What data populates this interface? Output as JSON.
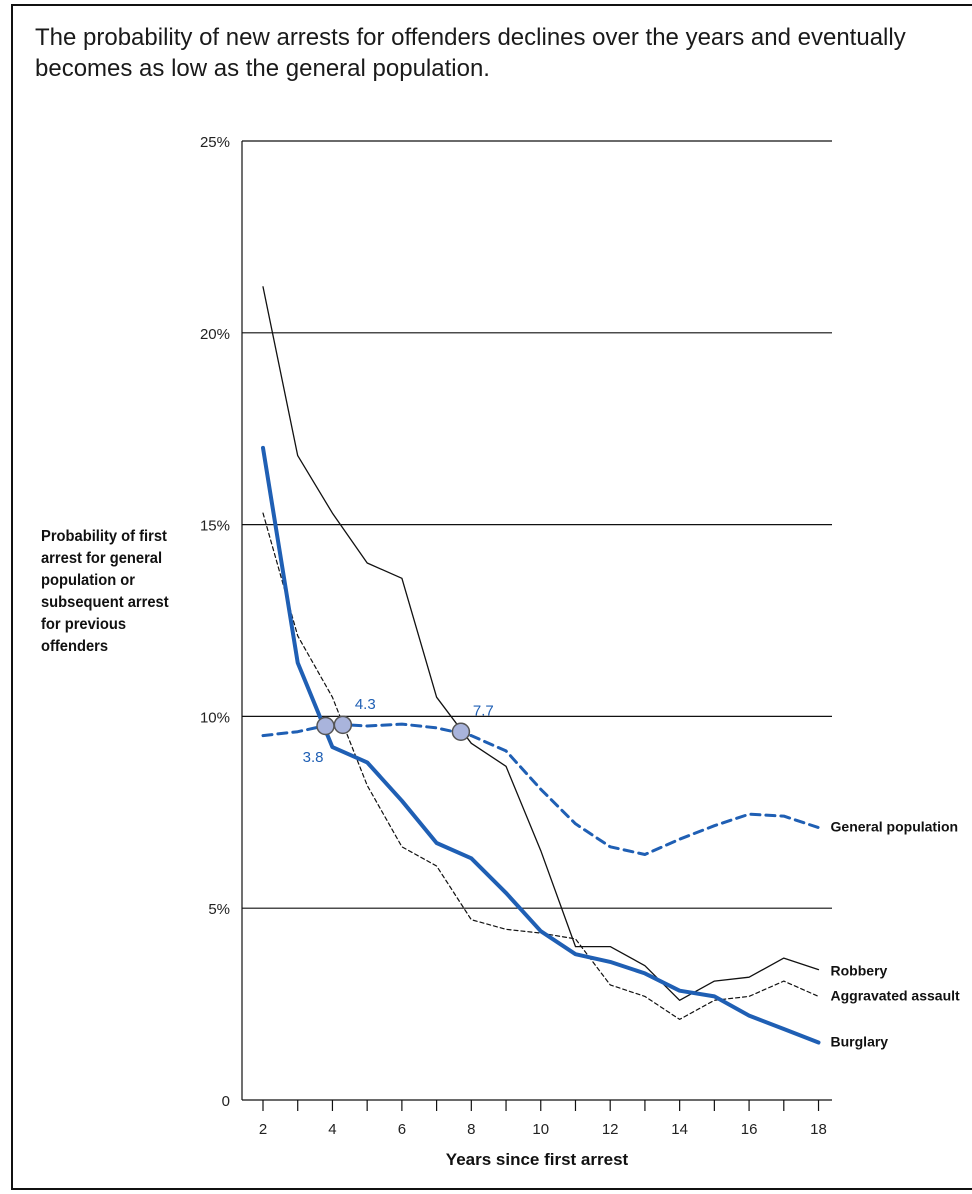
{
  "chart_data": {
    "type": "line",
    "title": "The probability of new arrests for offenders declines over the years and eventually becomes as low as the general population.",
    "xlabel": "Years since first arrest",
    "ylabel": "Probability of first arrest for general population or subsequent arrest for previous offenders",
    "xlim": [
      1.4,
      19.2
    ],
    "ylim": [
      0,
      25
    ],
    "x_ticks": [
      2,
      4,
      6,
      8,
      10,
      12,
      14,
      16,
      18
    ],
    "x_tick_labels": [
      "2",
      "4",
      "6",
      "8",
      "10",
      "12",
      "14",
      "16",
      "18"
    ],
    "y_ticks": [
      0,
      5,
      10,
      15,
      20,
      25
    ],
    "y_tick_labels": [
      "0",
      "5%",
      "10%",
      "15%",
      "20%",
      "25%"
    ],
    "grid": "horizontal",
    "colors": {
      "accent": "#1f5fb4",
      "marker_fill": "#a9b4dc",
      "marker_stroke": "#555555",
      "ink": "#111111"
    },
    "series": [
      {
        "name": "General population",
        "style": "dashed-thick",
        "color": "#1f5fb4",
        "x": [
          2,
          3,
          4,
          5,
          6,
          7,
          8,
          9,
          10,
          11,
          12,
          13,
          14,
          15,
          16,
          17,
          18
        ],
        "y": [
          9.5,
          9.6,
          9.8,
          9.75,
          9.8,
          9.7,
          9.5,
          9.1,
          8.1,
          7.2,
          6.6,
          6.4,
          6.8,
          7.15,
          7.45,
          7.4,
          7.1
        ]
      },
      {
        "name": "Robbery",
        "style": "solid-thin",
        "color": "#111111",
        "x": [
          2,
          3,
          4,
          5,
          6,
          7,
          8,
          9,
          10,
          11,
          12,
          13,
          14,
          15,
          16,
          17,
          18
        ],
        "y": [
          21.2,
          16.8,
          15.3,
          14.0,
          13.6,
          10.5,
          9.3,
          8.7,
          6.5,
          4.0,
          4.0,
          3.5,
          2.6,
          3.1,
          3.2,
          3.7,
          3.4
        ]
      },
      {
        "name": "Aggravated assault",
        "style": "dashed-thin",
        "color": "#111111",
        "x": [
          2,
          3,
          4,
          5,
          6,
          7,
          8,
          9,
          10,
          11,
          12,
          13,
          14,
          15,
          16,
          17,
          18
        ],
        "y": [
          15.3,
          12.1,
          10.5,
          8.2,
          6.6,
          6.1,
          4.7,
          4.45,
          4.35,
          4.2,
          3.0,
          2.7,
          2.1,
          2.6,
          2.7,
          3.1,
          2.7
        ]
      },
      {
        "name": "Burglary",
        "style": "solid-thick",
        "color": "#1f5fb4",
        "x": [
          2,
          3,
          4,
          5,
          6,
          7,
          8,
          9,
          10,
          11,
          12,
          13,
          14,
          15,
          16,
          17,
          18
        ],
        "y": [
          17.0,
          11.4,
          9.2,
          8.8,
          7.8,
          6.7,
          6.3,
          5.4,
          4.4,
          3.8,
          3.6,
          3.3,
          2.85,
          2.7,
          2.2,
          1.85,
          1.5
        ]
      }
    ],
    "annotations": [
      {
        "x": 3.8,
        "y": 9.75,
        "label": "3.8",
        "placement": "below-left"
      },
      {
        "x": 4.3,
        "y": 9.78,
        "label": "4.3",
        "placement": "above-right"
      },
      {
        "x": 7.7,
        "y": 9.6,
        "label": "7.7",
        "placement": "above-right"
      }
    ]
  }
}
